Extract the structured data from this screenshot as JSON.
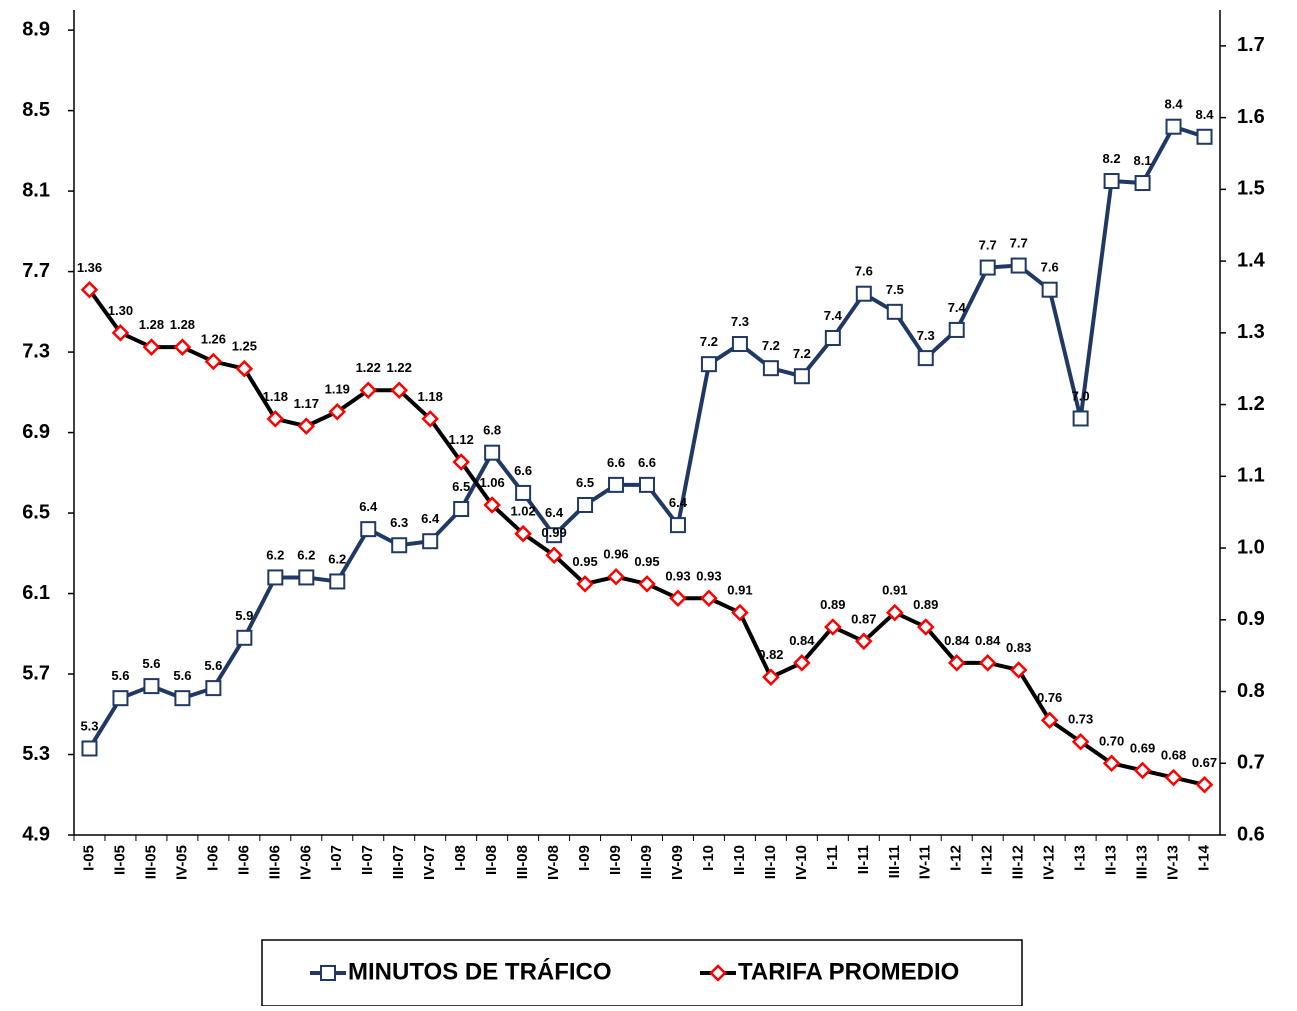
{
  "chart_data": {
    "type": "line",
    "categories": [
      "I-05",
      "II-05",
      "III-05",
      "IV-05",
      "I-06",
      "II-06",
      "III-06",
      "IV-06",
      "I-07",
      "II-07",
      "III-07",
      "IV-07",
      "I-08",
      "II-08",
      "III-08",
      "IV-08",
      "I-09",
      "II-09",
      "III-09",
      "IV-09",
      "I-10",
      "II-10",
      "III-10",
      "IV-10",
      "I-11",
      "II-11",
      "III-11",
      "IV-11",
      "I-12",
      "II-12",
      "III-12",
      "IV-12",
      "I-13",
      "II-13",
      "III-13",
      "IV-13",
      "I-14"
    ],
    "series": [
      {
        "name": "MINUTOS DE TRÁFICO",
        "color": "#1f3864",
        "marker": "square",
        "marker_color": "#1f3864",
        "axis": "y",
        "values": [
          5.33,
          5.58,
          5.64,
          5.58,
          5.63,
          5.88,
          6.18,
          6.18,
          6.16,
          6.42,
          6.34,
          6.36,
          6.52,
          6.8,
          6.6,
          6.39,
          6.54,
          6.64,
          6.64,
          6.44,
          7.24,
          7.34,
          7.22,
          7.18,
          7.37,
          7.59,
          7.5,
          7.27,
          7.41,
          7.72,
          7.73,
          7.61,
          6.97,
          8.15,
          8.14,
          8.42,
          8.37
        ],
        "value_labels": [
          "5.3",
          "5.6",
          "5.6",
          "5.6",
          "5.6",
          "5.9",
          "6.2",
          "6.2",
          "6.2",
          "6.4",
          "6.3",
          "6.4",
          "6.5",
          "6.8",
          "6.6",
          "6.4",
          "6.5",
          "6.6",
          "6.6",
          "6.4",
          "7.2",
          "7.3",
          "7.2",
          "7.2",
          "7.4",
          "7.6",
          "7.5",
          "7.3",
          "7.4",
          "7.7",
          "7.7",
          "7.6",
          "7.0",
          "8.2",
          "8.1",
          "8.4",
          "8.4"
        ]
      },
      {
        "name": "TARIFA PROMEDIO",
        "color": "#000000",
        "marker": "diamond",
        "marker_color": "#ff0000",
        "axis": "y2",
        "values": [
          1.36,
          1.3,
          1.28,
          1.28,
          1.26,
          1.25,
          1.18,
          1.17,
          1.19,
          1.22,
          1.22,
          1.18,
          1.12,
          1.06,
          1.02,
          0.99,
          0.95,
          0.96,
          0.95,
          0.93,
          0.93,
          0.91,
          0.82,
          0.84,
          0.89,
          0.87,
          0.91,
          0.89,
          0.84,
          0.84,
          0.83,
          0.76,
          0.73,
          0.7,
          0.69,
          0.68,
          0.67
        ],
        "value_labels": [
          "1.36",
          "1.30",
          "1.28",
          "1.28",
          "1.26",
          "1.25",
          "1.18",
          "1.17",
          "1.19",
          "1.22",
          "1.22",
          "1.18",
          "1.12",
          "1.06",
          "1.02",
          "0.99",
          "0.95",
          "0.96",
          "0.95",
          "0.93",
          "0.93",
          "0.91",
          "0.82",
          "0.84",
          "0.89",
          "0.87",
          "0.91",
          "0.89",
          "0.84",
          "0.84",
          "0.83",
          "0.76",
          "0.73",
          "0.70",
          "0.69",
          "0.68",
          "0.67"
        ]
      }
    ],
    "ylim": [
      4.9,
      9.0
    ],
    "yticks": [
      4.9,
      5.3,
      5.7,
      6.1,
      6.5,
      6.9,
      7.3,
      7.7,
      8.1,
      8.5,
      8.9
    ],
    "y2lim": [
      0.6,
      1.75
    ],
    "y2ticks": [
      0.6,
      0.7,
      0.8,
      0.9,
      {
        "value": 1.0,
        "label": "1.0"
      },
      1.1,
      1.2,
      1.3,
      1.4,
      1.5,
      1.6,
      1.7
    ],
    "legend": "bottom"
  }
}
